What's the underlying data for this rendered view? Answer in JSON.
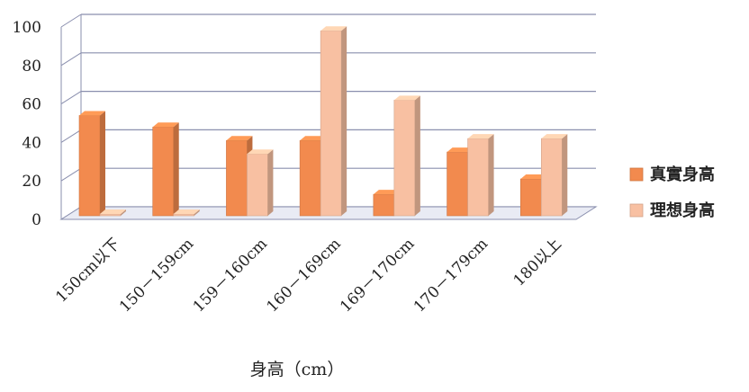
{
  "chart_data": {
    "type": "bar",
    "categories": [
      "150cm以下",
      "150－159cm",
      "159－160cm",
      "160－169cm",
      "169－170cm",
      "170－179cm",
      "180以上"
    ],
    "series": [
      {
        "name": "真實身高",
        "values": [
          54,
          48,
          41,
          41,
          13,
          35,
          21
        ],
        "color": "#f28a4e"
      },
      {
        "name": "理想身高",
        "values": [
          0,
          0,
          34,
          98,
          62,
          42,
          42
        ],
        "color": "#f8c0a2"
      }
    ],
    "ylim": [
      0,
      100
    ],
    "yticks": [
      0,
      20,
      40,
      60,
      80,
      100
    ],
    "xlabel": "身高（cm）",
    "ylabel": "",
    "grid": true,
    "legend_position": "right"
  }
}
